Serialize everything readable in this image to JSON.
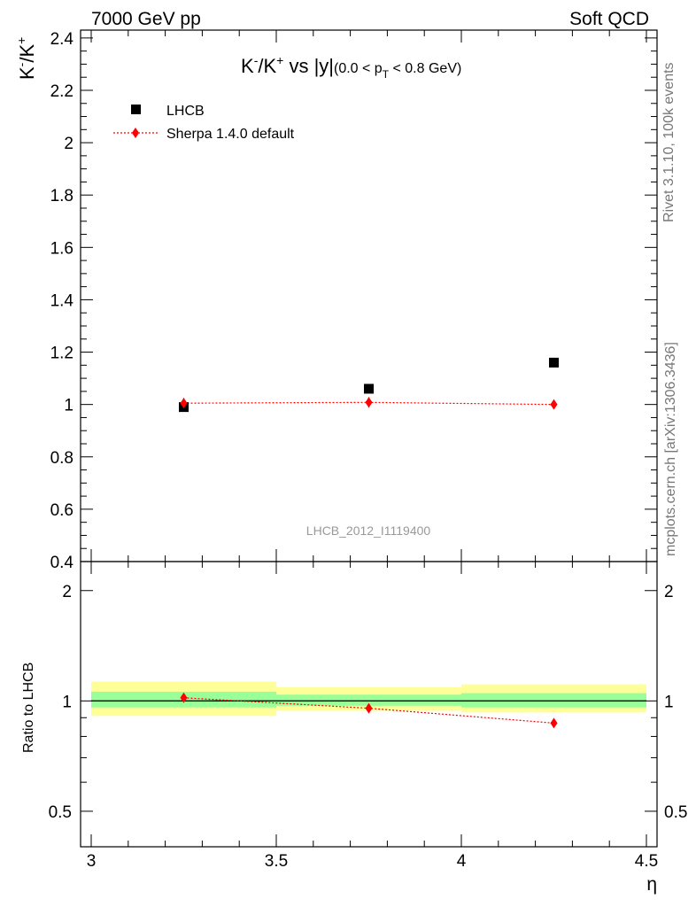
{
  "header": {
    "left": "7000 GeV pp",
    "right": "Soft QCD"
  },
  "side": {
    "rivet": "Rivet 3.1.10,  100k events",
    "mcplots": "mcplots.cern.ch [arXiv:1306.3436]"
  },
  "colors": {
    "data": "#000000",
    "mc": "#ff0000",
    "band_outer": "#ffff99",
    "band_inner": "#99ff99"
  },
  "chart_data": [
    {
      "type": "scatter",
      "panel": "main",
      "title": "K⁻/K⁺ vs |y|(0.0 < pT < 0.8 GeV)",
      "ylabel": "K⁻/K⁺",
      "xlim": [
        3.0,
        4.5
      ],
      "ylim": [
        0.4,
        2.43
      ],
      "yticks": [
        "0.4",
        "0.6",
        "0.8",
        "1",
        "1.2",
        "1.4",
        "1.6",
        "1.8",
        "2",
        "2.2",
        "2.4"
      ],
      "watermark": "LHCB_2012_I1119400",
      "legend": {
        "placement": "top-left",
        "entries": [
          "LHCB",
          "Sherpa 1.4.0 default"
        ]
      },
      "series": [
        {
          "name": "LHCB",
          "marker": "square",
          "x": [
            3.25,
            3.75,
            4.25
          ],
          "y": [
            0.99,
            1.06,
            1.16
          ]
        },
        {
          "name": "Sherpa 1.4.0 default",
          "marker": "diamond",
          "line": "dotted",
          "x": [
            3.25,
            3.75,
            4.25
          ],
          "y": [
            1.005,
            1.008,
            1.0
          ],
          "yerr": [
            0.02,
            0.02,
            0.0
          ]
        }
      ]
    },
    {
      "type": "line",
      "panel": "ratio",
      "ylabel": "Ratio to LHCB",
      "xlabel": "η",
      "xlim": [
        3.0,
        4.5
      ],
      "ylim": [
        0.4,
        2.4
      ],
      "yscale": "log",
      "xticks": [
        "3",
        "3.5",
        "4",
        "4.5"
      ],
      "yticks": [
        "0.5",
        "1",
        "2"
      ],
      "bands": [
        {
          "x": [
            3.0,
            3.5
          ],
          "outer": [
            0.91,
            1.13
          ],
          "inner": [
            0.96,
            1.06
          ]
        },
        {
          "x": [
            3.5,
            4.0
          ],
          "outer": [
            0.94,
            1.09
          ],
          "inner": [
            0.97,
            1.04
          ]
        },
        {
          "x": [
            4.0,
            4.5
          ],
          "outer": [
            0.93,
            1.11
          ],
          "inner": [
            0.96,
            1.05
          ]
        }
      ],
      "series": [
        {
          "name": "Sherpa 1.4.0 default",
          "x": [
            3.25,
            3.75,
            4.25
          ],
          "y": [
            1.02,
            0.955,
            0.87
          ]
        }
      ]
    }
  ]
}
